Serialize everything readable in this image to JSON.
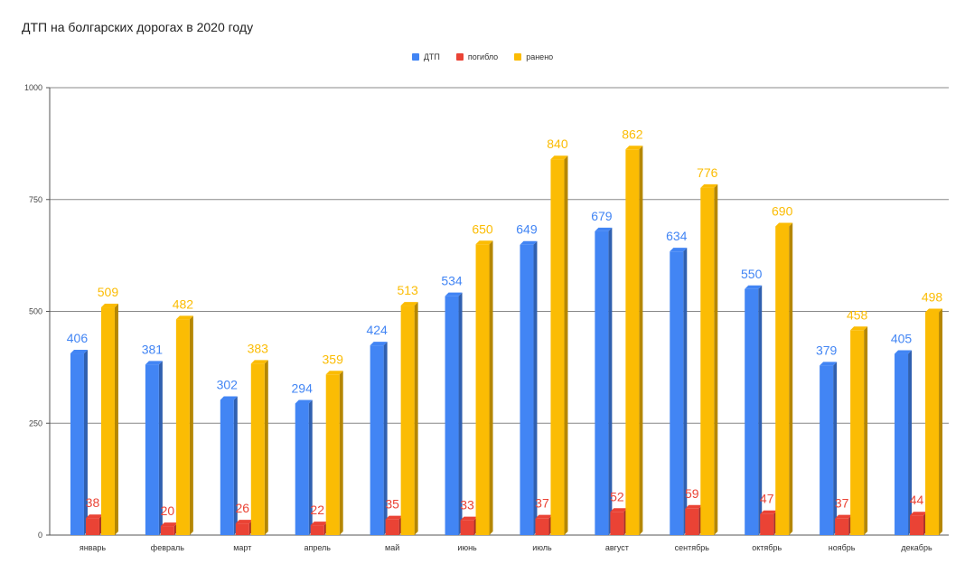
{
  "chart_data": {
    "type": "bar",
    "title": "ДТП на болгарских дорогах в 2020 году",
    "categories": [
      "январь",
      "февраль",
      "март",
      "апрель",
      "май",
      "июнь",
      "июль",
      "август",
      "сентябрь",
      "октябрь",
      "ноябрь",
      "декабрь"
    ],
    "series": [
      {
        "name": "ДТП",
        "color": "#4285f4",
        "label_color": "#4285f4",
        "values": [
          406,
          381,
          302,
          294,
          424,
          534,
          649,
          679,
          634,
          550,
          379,
          405
        ]
      },
      {
        "name": "погибло",
        "color": "#ea4335",
        "label_color": "#ea4335",
        "values": [
          38,
          20,
          26,
          22,
          35,
          33,
          37,
          52,
          59,
          47,
          37,
          44
        ]
      },
      {
        "name": "ранено",
        "color": "#fbbc04",
        "label_color": "#fbbc04",
        "values": [
          509,
          482,
          383,
          359,
          513,
          650,
          840,
          862,
          776,
          690,
          458,
          498
        ]
      }
    ],
    "ylim": [
      0,
      1000
    ],
    "yticks": [
      0,
      250,
      500,
      750,
      1000
    ],
    "grid": true,
    "legend_position": "top-center",
    "xlabel": "",
    "ylabel": ""
  }
}
